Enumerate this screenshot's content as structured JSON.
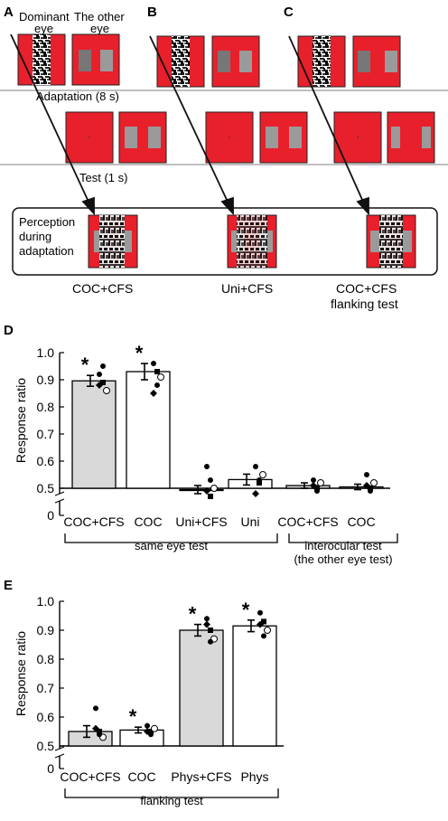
{
  "panel_labels": {
    "A": "A",
    "B": "B",
    "C": "C",
    "D": "D",
    "E": "E"
  },
  "schematic": {
    "dominant_eye_label": "Dominant eye",
    "other_eye_label": "The other eye",
    "adaptation_label": "Adaptation (8 s)",
    "test_label": "Test (1 s)",
    "perception_label": "Perception during adaptation",
    "conditions": [
      "COC+CFS",
      "Uni+CFS",
      "COC+CFS flanking test"
    ]
  },
  "colors": {
    "stim_red": "#e8202b",
    "stim_gray": "#9a9a9a",
    "bar_gray": "#d9d9d9",
    "bar_white": "#ffffff"
  },
  "chart_data": [
    {
      "panel": "D",
      "type": "bar",
      "ylabel": "Response ratio",
      "yticks": [
        0,
        0.5,
        0.6,
        0.7,
        0.8,
        0.9,
        1.0
      ],
      "ylim": [
        0.5,
        1.0
      ],
      "axis_break": true,
      "categories": [
        "COC+CFS",
        "COC",
        "Uni+CFS",
        "Uni",
        "COC+CFS",
        "COC"
      ],
      "values": [
        0.896,
        0.93,
        0.495,
        0.532,
        0.51,
        0.505
      ],
      "errors": [
        0.02,
        0.03,
        0.015,
        0.02,
        0.01,
        0.01
      ],
      "fills": [
        "gray",
        "white",
        "gray",
        "white",
        "gray",
        "white"
      ],
      "significant": [
        true,
        true,
        false,
        false,
        false,
        false
      ],
      "groups": [
        {
          "label": "same eye test",
          "members": [
            0,
            1,
            2,
            3
          ]
        },
        {
          "label": "interocular test (the other eye test)",
          "members": [
            4,
            5
          ]
        }
      ],
      "individual_points": [
        [
          0.92,
          0.89,
          0.86,
          0.88,
          0.95
        ],
        [
          0.96,
          0.93,
          0.91,
          0.85,
          0.88
        ],
        [
          0.58,
          0.47,
          0.5,
          0.49,
          0.53
        ],
        [
          0.58,
          0.52,
          0.55,
          0.48,
          0.53
        ],
        [
          0.53,
          0.5,
          0.52,
          0.51,
          0.49
        ],
        [
          0.55,
          0.5,
          0.52,
          0.51,
          0.49
        ]
      ]
    },
    {
      "panel": "E",
      "type": "bar",
      "ylabel": "Response ratio",
      "yticks": [
        0,
        0.5,
        0.6,
        0.7,
        0.8,
        0.9,
        1.0
      ],
      "ylim": [
        0.5,
        1.0
      ],
      "axis_break": true,
      "categories": [
        "COC+CFS",
        "COC",
        "Phys+CFS",
        "Phys"
      ],
      "values": [
        0.55,
        0.555,
        0.9,
        0.915
      ],
      "errors": [
        0.02,
        0.01,
        0.02,
        0.02
      ],
      "fills": [
        "gray",
        "white",
        "gray",
        "white"
      ],
      "significant": [
        false,
        true,
        true,
        true
      ],
      "groups": [
        {
          "label": "flanking test",
          "members": [
            0,
            1,
            2,
            3
          ]
        }
      ],
      "individual_points": [
        [
          0.63,
          0.55,
          0.53,
          0.56,
          0.54
        ],
        [
          0.57,
          0.55,
          0.56,
          0.55,
          0.54
        ],
        [
          0.94,
          0.9,
          0.87,
          0.92,
          0.86
        ],
        [
          0.96,
          0.93,
          0.9,
          0.92,
          0.88
        ]
      ]
    }
  ]
}
